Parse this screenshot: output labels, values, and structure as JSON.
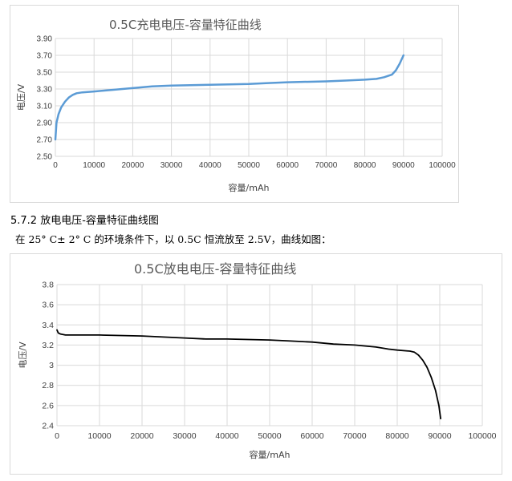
{
  "section": {
    "heading": "5.7.2 放电电压-容量特征曲线图",
    "text": "在 25° C± 2° C 的环境条件下，以 0.5C 恒流放至 2.5V，曲线如图："
  },
  "chart_data": [
    {
      "type": "line",
      "title": "0.5C充电电压-容量特征曲线",
      "xlabel": "容量/mAh",
      "ylabel": "电压/V",
      "xlim": [
        0,
        100000
      ],
      "ylim": [
        2.5,
        3.9
      ],
      "x_ticks": [
        0,
        10000,
        20000,
        30000,
        40000,
        50000,
        60000,
        70000,
        80000,
        90000,
        100000
      ],
      "y_ticks": [
        2.5,
        2.7,
        2.9,
        3.1,
        3.3,
        3.5,
        3.7,
        3.9
      ],
      "y_tick_labels": [
        "2.50",
        "2.70",
        "2.90",
        "3.10",
        "3.30",
        "3.50",
        "3.70",
        "3.90"
      ],
      "grid": true,
      "color": "#5b9bd5",
      "series": [
        {
          "x": [
            0,
            300,
            800,
            1500,
            2500,
            3500,
            4500,
            5500,
            7000,
            10000,
            15000,
            20000,
            25000,
            30000,
            40000,
            50000,
            55000,
            60000,
            70000,
            75000,
            80000,
            83000,
            85000,
            87000,
            88000,
            89000,
            90000
          ],
          "y": [
            2.7,
            2.9,
            3.0,
            3.08,
            3.15,
            3.2,
            3.23,
            3.25,
            3.26,
            3.27,
            3.29,
            3.31,
            3.33,
            3.34,
            3.35,
            3.36,
            3.37,
            3.38,
            3.39,
            3.4,
            3.41,
            3.42,
            3.44,
            3.47,
            3.52,
            3.6,
            3.7
          ]
        }
      ]
    },
    {
      "type": "line",
      "title": "0.5C放电电压-容量特征曲线",
      "xlabel": "容量/mAh",
      "ylabel": "电压/V",
      "xlim": [
        0,
        100000
      ],
      "ylim": [
        2.4,
        3.8
      ],
      "x_ticks": [
        0,
        10000,
        20000,
        30000,
        40000,
        50000,
        60000,
        70000,
        80000,
        90000,
        100000
      ],
      "y_ticks": [
        2.4,
        2.6,
        2.8,
        3.0,
        3.2,
        3.4,
        3.6,
        3.8
      ],
      "y_tick_labels": [
        "2.4",
        "2.6",
        "2.8",
        "3",
        "3.2",
        "3.4",
        "3.6",
        "3.8"
      ],
      "grid": true,
      "color": "#000000",
      "series": [
        {
          "x": [
            0,
            300,
            800,
            2000,
            10000,
            20000,
            25000,
            30000,
            35000,
            40000,
            50000,
            55000,
            60000,
            65000,
            70000,
            75000,
            78000,
            80000,
            83000,
            84000,
            85000,
            86000,
            87000,
            88000,
            89000,
            89800,
            90200
          ],
          "y": [
            3.35,
            3.32,
            3.31,
            3.3,
            3.3,
            3.29,
            3.28,
            3.27,
            3.26,
            3.26,
            3.25,
            3.24,
            3.23,
            3.21,
            3.2,
            3.18,
            3.16,
            3.15,
            3.14,
            3.13,
            3.1,
            3.05,
            2.98,
            2.88,
            2.75,
            2.6,
            2.47
          ]
        }
      ]
    }
  ]
}
